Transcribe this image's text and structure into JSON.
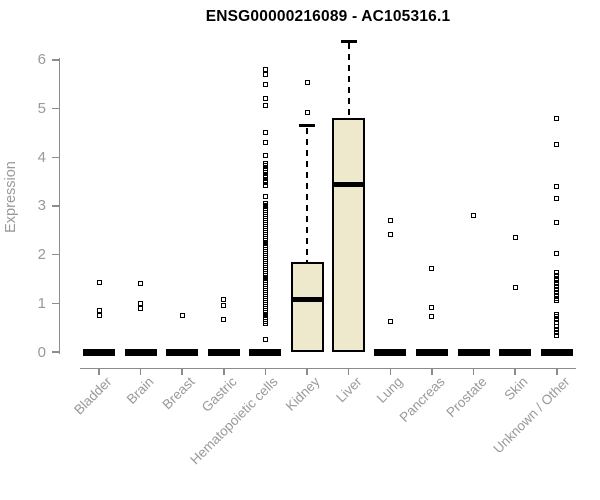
{
  "title": "ENSG00000216089 - AC105316.1",
  "y_axis": {
    "label": "Expression",
    "ticks": [
      0,
      1,
      2,
      3,
      4,
      5,
      6
    ],
    "min": 0,
    "max": 6
  },
  "colors": {
    "background": "#ffffff",
    "title": "#000000",
    "axis": "#8c8c8c",
    "tick_label": "#999999",
    "box_fill": "#eee8cd",
    "box_border": "#000000",
    "point": "#000000"
  },
  "chart_data": {
    "type": "boxplot",
    "title": "ENSG00000216089 - AC105316.1",
    "xlabel": "",
    "ylabel": "Expression",
    "ylim": [
      0,
      6
    ],
    "grid": false,
    "categories": [
      "Bladder",
      "Brain",
      "Breast",
      "Gastric",
      "Hematopoietic cells",
      "Kidney",
      "Liver",
      "Lung",
      "Pancreas",
      "Prostate",
      "Skin",
      "Unknown / Other"
    ],
    "series": [
      {
        "name": "Bladder",
        "box": {
          "whisker_low": 0,
          "q1": 0,
          "median": 0,
          "q3": 0,
          "whisker_high": 0
        },
        "outliers": [
          1.42,
          0.85,
          0.76
        ]
      },
      {
        "name": "Brain",
        "box": {
          "whisker_low": 0,
          "q1": 0,
          "median": 0,
          "q3": 0,
          "whisker_high": 0
        },
        "outliers": [
          1.4,
          0.99,
          0.89
        ]
      },
      {
        "name": "Breast",
        "box": {
          "whisker_low": 0,
          "q1": 0,
          "median": 0,
          "q3": 0,
          "whisker_high": 0
        },
        "outliers": [
          0.74
        ]
      },
      {
        "name": "Gastric",
        "box": {
          "whisker_low": 0,
          "q1": 0,
          "median": 0,
          "q3": 0,
          "whisker_high": 0
        },
        "outliers": [
          1.07,
          0.95,
          0.66
        ]
      },
      {
        "name": "Hematopoietic cells",
        "box": {
          "whisker_low": 0,
          "q1": 0,
          "median": 0,
          "q3": 0,
          "whisker_high": 0
        },
        "outliers": [
          5.81,
          5.7,
          5.5,
          5.21,
          5.06,
          4.52,
          4.3,
          4.04,
          3.88,
          3.83,
          3.78,
          3.73,
          3.68,
          3.63,
          3.58,
          3.53,
          3.48,
          3.43,
          3.2,
          3.06,
          3.02,
          2.98,
          2.94,
          2.9,
          2.86,
          2.82,
          2.78,
          2.74,
          2.7,
          2.66,
          2.62,
          2.58,
          2.54,
          2.5,
          2.46,
          2.42,
          2.38,
          2.34,
          2.3,
          2.26,
          2.22,
          2.18,
          2.14,
          2.1,
          2.06,
          2.02,
          1.98,
          1.94,
          1.9,
          1.86,
          1.82,
          1.78,
          1.74,
          1.7,
          1.66,
          1.62,
          1.58,
          1.54,
          1.5,
          1.46,
          1.42,
          1.38,
          1.34,
          1.3,
          1.26,
          1.22,
          1.18,
          1.14,
          1.1,
          1.06,
          1.02,
          0.98,
          0.94,
          0.9,
          0.86,
          0.82,
          0.78,
          0.74,
          0.7,
          0.66,
          0.62,
          0.58,
          0.25
        ]
      },
      {
        "name": "Kidney",
        "box": {
          "whisker_low": 0,
          "q1": 0,
          "median": 1.07,
          "q3": 1.85,
          "whisker_high": 4.65
        },
        "outliers": [
          5.54,
          4.93
        ]
      },
      {
        "name": "Liver",
        "box": {
          "whisker_low": 0,
          "q1": 0,
          "median": 3.45,
          "q3": 4.8,
          "whisker_high": 6.38
        },
        "outliers": []
      },
      {
        "name": "Lung",
        "box": {
          "whisker_low": 0,
          "q1": 0,
          "median": 0,
          "q3": 0,
          "whisker_high": 0
        },
        "outliers": [
          2.71,
          2.42,
          0.62
        ]
      },
      {
        "name": "Pancreas",
        "box": {
          "whisker_low": 0,
          "q1": 0,
          "median": 0,
          "q3": 0,
          "whisker_high": 0
        },
        "outliers": [
          1.72,
          0.92,
          0.72
        ]
      },
      {
        "name": "Prostate",
        "box": {
          "whisker_low": 0,
          "q1": 0,
          "median": 0,
          "q3": 0,
          "whisker_high": 0
        },
        "outliers": [
          2.81
        ]
      },
      {
        "name": "Skin",
        "box": {
          "whisker_low": 0,
          "q1": 0,
          "median": 0,
          "q3": 0,
          "whisker_high": 0
        },
        "outliers": [
          2.36,
          1.33
        ]
      },
      {
        "name": "Unknown / Other",
        "box": {
          "whisker_low": 0,
          "q1": 0,
          "median": 0,
          "q3": 0,
          "whisker_high": 0
        },
        "outliers": [
          4.8,
          4.27,
          3.4,
          3.15,
          2.67,
          2.03,
          1.64,
          1.58,
          1.52,
          1.46,
          1.4,
          1.34,
          1.28,
          1.22,
          1.16,
          1.1,
          1.05,
          0.78,
          0.72,
          0.66,
          0.6,
          0.52,
          0.46,
          0.4,
          0.33
        ]
      }
    ]
  }
}
